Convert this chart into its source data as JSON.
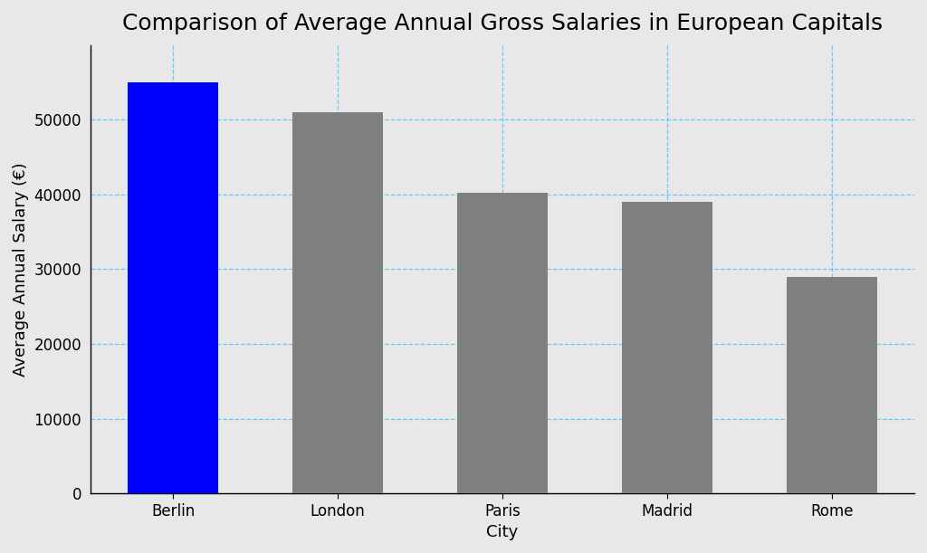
{
  "title": "Comparison of Average Annual Gross Salaries in European Capitals",
  "xlabel": "City",
  "ylabel": "Average Annual Salary (€)",
  "categories": [
    "Berlin",
    "London",
    "Paris",
    "Madrid",
    "Rome"
  ],
  "values": [
    55000,
    51000,
    40200,
    39000,
    29000
  ],
  "bar_colors": [
    "#0000ff",
    "#808080",
    "#808080",
    "#808080",
    "#808080"
  ],
  "ylim": [
    0,
    60000
  ],
  "yticks": [
    0,
    10000,
    20000,
    30000,
    40000,
    50000
  ],
  "grid_color": "#00bfff",
  "grid_linestyle": "--",
  "grid_alpha": 0.6,
  "figure_bg_color": "#e8e8e8",
  "axes_bg_color": "#e8e8e8",
  "title_fontsize": 18,
  "axis_label_fontsize": 13,
  "tick_fontsize": 12,
  "bar_width": 0.55
}
